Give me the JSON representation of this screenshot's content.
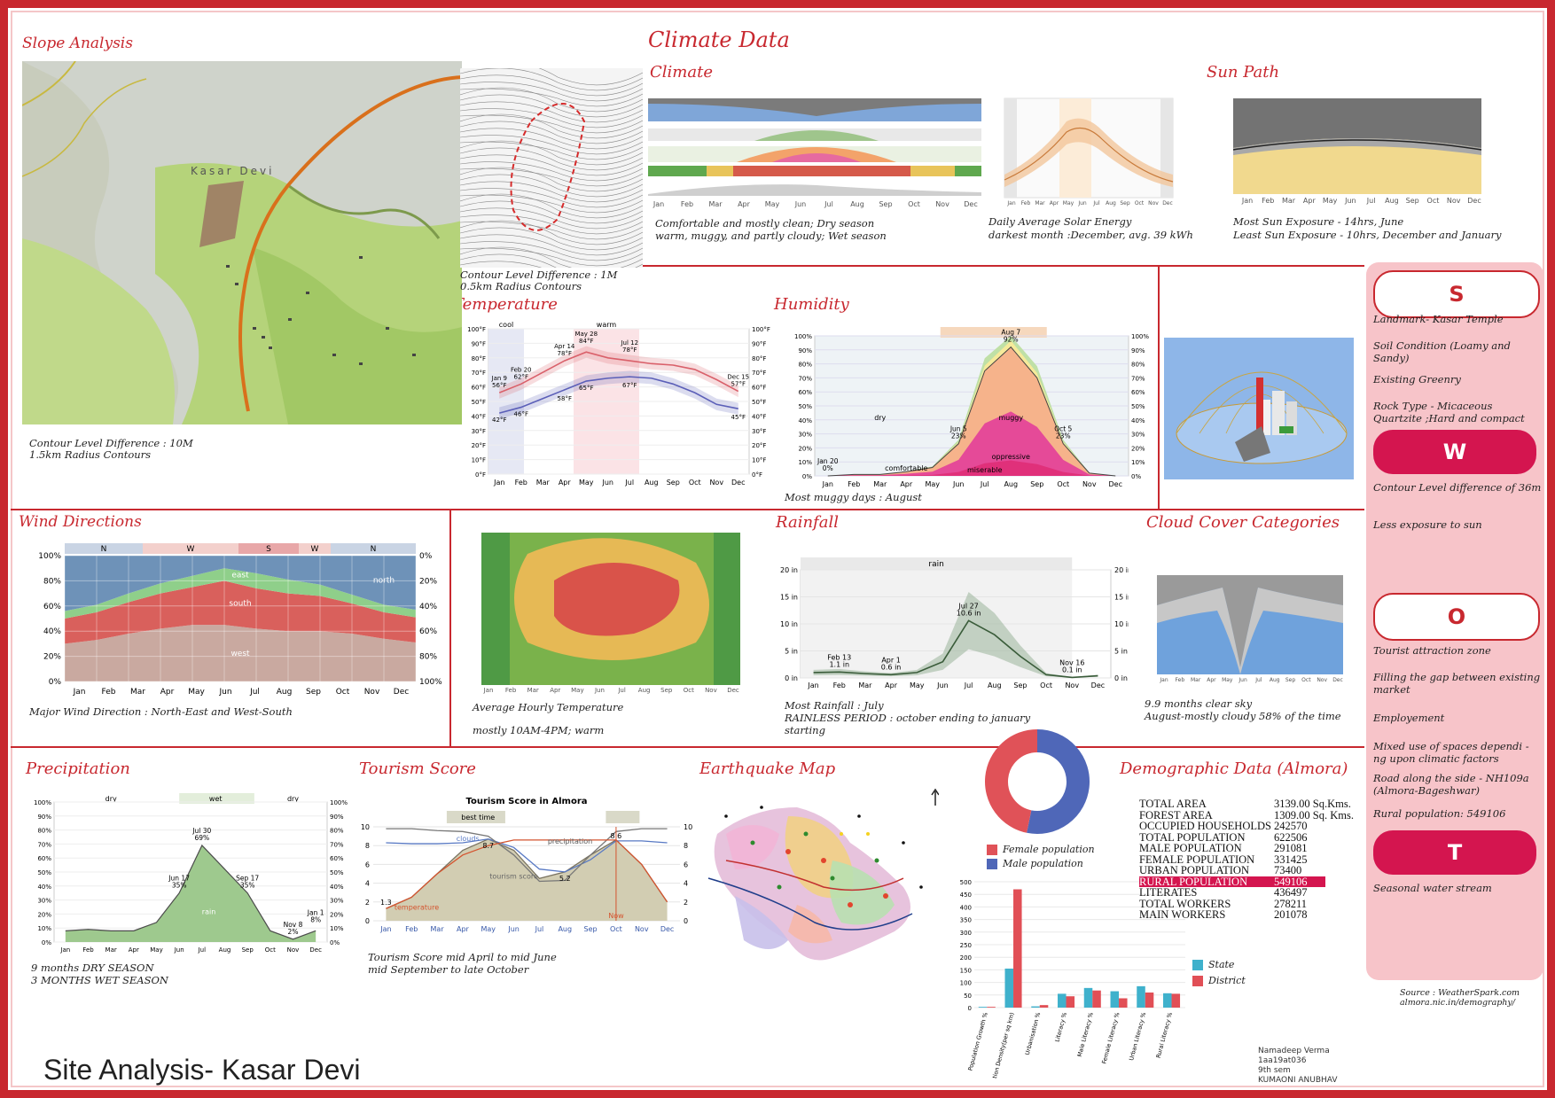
{
  "sheet_title": "Climate Data",
  "sections": {
    "slope": {
      "title": "Slope Analysis",
      "cap1": "Contour Level Difference : 10M",
      "cap2": "1.5km Radius Contours",
      "cap3": "Contour Level Difference : 1M",
      "cap4": "0.5km Radius Contours",
      "map_label": "Kasar Devi"
    },
    "climate": {
      "title": "Climate",
      "cap1": "Comfortable and mostly clean; Dry season",
      "cap2": "warm, muggy, and partly cloudy; Wet season"
    },
    "solar": {
      "cap1": "Daily Average Solar Energy",
      "cap2": "darkest month :December, avg. 39 kWh"
    },
    "sunpath": {
      "title": "Sun Path",
      "cap1": "Most Sun Exposure - 14hrs, June",
      "cap2": "Least Sun Exposure - 10hrs, December and January"
    },
    "temperature": {
      "title": "Temperature"
    },
    "humidity": {
      "title": "Humidity",
      "cap": "Most muggy days : August"
    },
    "wind": {
      "title": "Wind Directions",
      "cap": "Major Wind Direction : North-East and West-South"
    },
    "hourly": {
      "cap1": "Average Hourly Temperature",
      "cap2": "mostly 10AM-4PM; warm"
    },
    "rainfall": {
      "title": "Rainfall",
      "cap1": "Most Rainfall : July",
      "cap2": "RAINLESS PERIOD : october ending to january",
      "cap3": "starting"
    },
    "cloud": {
      "title": "Cloud Cover Categories",
      "cap1": "9.9 months clear sky",
      "cap2": "August-mostly cloudy 58% of the time"
    },
    "precip": {
      "title": "Precipitation",
      "cap1": "9 months DRY SEASON",
      "cap2": "3 MONTHS WET SEASON"
    },
    "tourism": {
      "title": "Tourism Score",
      "chart_title": "Tourism Score in Almora",
      "cap1": "Tourism Score mid April to mid June",
      "cap2": "mid September to late October"
    },
    "quake": {
      "title": "Earthquake Map"
    },
    "demographic": {
      "title": "Demographic Data (Almora)"
    }
  },
  "months": [
    "Jan",
    "Feb",
    "Mar",
    "Apr",
    "May",
    "Jun",
    "Jul",
    "Aug",
    "Sep",
    "Oct",
    "Nov",
    "Dec"
  ],
  "swot": [
    {
      "letter": "S",
      "style": "light",
      "items": [
        "Landmark- Kasar Temple",
        "Soil Condition (Loamy and Sandy)",
        "Existing Greenry",
        "Rock Type - Micaceous Quartzite ;Hard and compact"
      ]
    },
    {
      "letter": "W",
      "style": "dark",
      "items": [
        "Contour Level difference of 36m",
        "Less exposure to sun"
      ]
    },
    {
      "letter": "O",
      "style": "light",
      "items": [
        "Tourist attraction zone",
        "Filling the gap between existing market",
        "Employement",
        "Mixed use of spaces dependi -ng upon climatic factors",
        "Road along the side - NH109a (Almora-Bageshwar)",
        "Rural population: 549106"
      ]
    },
    {
      "letter": "T",
      "style": "dark",
      "items": [
        "Seasonal water stream"
      ]
    }
  ],
  "demographics": [
    {
      "label": "TOTAL AREA",
      "value": "3139.00 Sq.Kms."
    },
    {
      "label": "FOREST AREA",
      "value": "1309.00 Sq. Kms."
    },
    {
      "label": "OCCUPIED HOUSEHOLDS",
      "value": "242570"
    },
    {
      "label": "TOTAL POPULATION",
      "value": "622506"
    },
    {
      "label": "MALE POPULATION",
      "value": "291081"
    },
    {
      "label": "FEMALE POPULATION",
      "value": "331425"
    },
    {
      "label": "URBAN POPULATION",
      "value": "73400"
    },
    {
      "label": "RURAL POPULATION",
      "value": "549106",
      "highlight": true
    },
    {
      "label": "LITERATES",
      "value": "436497"
    },
    {
      "label": "TOTAL WORKERS",
      "value": "278211"
    },
    {
      "label": "MAIN WORKERS",
      "value": "201078"
    }
  ],
  "donut": {
    "legend_female": "Female population",
    "legend_male": "Male population",
    "colors": {
      "female": "#e05258",
      "male": "#4f67b8"
    }
  },
  "source": {
    "line1": "Source : WeatherSpark.com",
    "line2": "almora.nic.in/demography/"
  },
  "credits": [
    "Namadeep Verma",
    "1aa19at036",
    "9th sem",
    "KUMAONI ANUBHAV"
  ],
  "big_title": "Site Analysis- Kasar Devi",
  "chart_data": [
    {
      "id": "temperature",
      "type": "line",
      "x": [
        "Jan",
        "Feb",
        "Mar",
        "Apr",
        "May",
        "Jun",
        "Jul",
        "Aug",
        "Sep",
        "Oct",
        "Nov",
        "Dec"
      ],
      "series": [
        {
          "values": [
            56,
            62,
            70,
            78,
            84,
            80,
            78,
            76,
            75,
            72,
            65,
            57
          ]
        },
        {
          "values": [
            42,
            46,
            52,
            58,
            64,
            66,
            67,
            66,
            62,
            56,
            48,
            45
          ]
        }
      ],
      "labels": [
        "Jan 9",
        "56°F",
        "42°F",
        "Feb 20",
        "62°F",
        "46°F",
        "Apr 14",
        "78°F",
        "58°F",
        "May 28",
        "84°F",
        "65°F",
        "Jul 12",
        "78°F",
        "67°F",
        "Dec 15",
        "57°F",
        "45°F"
      ],
      "bands": [
        "cool",
        "warm"
      ],
      "yticks": [
        "100°F",
        "90°F",
        "80°F",
        "70°F",
        "60°F",
        "50°F",
        "40°F",
        "30°F",
        "20°F",
        "10°F",
        "0°F"
      ],
      "ylim": [
        0,
        100
      ]
    },
    {
      "id": "humidity",
      "type": "area",
      "x": [
        "Jan",
        "Feb",
        "Mar",
        "Apr",
        "May",
        "Jun",
        "Jul",
        "Aug",
        "Sep",
        "Oct",
        "Nov",
        "Dec"
      ],
      "values": [
        0,
        1,
        1,
        3,
        6,
        23,
        75,
        92,
        70,
        23,
        2,
        0
      ],
      "labels": [
        "Jan 20",
        "0%",
        "Jun 5",
        "23%",
        "Aug 7",
        "92%",
        "Oct 5",
        "23%"
      ],
      "zones": [
        "dry",
        "comfortable",
        "muggy",
        "oppressive",
        "miserable"
      ],
      "yticks": [
        "100%",
        "90%",
        "80%",
        "70%",
        "60%",
        "50%",
        "40%",
        "30%",
        "20%",
        "10%",
        "0%"
      ],
      "ylim": [
        0,
        100
      ]
    },
    {
      "id": "wind",
      "type": "area",
      "x": [
        "Jan",
        "Feb",
        "Mar",
        "Apr",
        "May",
        "Jun",
        "Jul",
        "Aug",
        "Sep",
        "Oct",
        "Nov",
        "Dec"
      ],
      "series": [
        {
          "name": "west",
          "values": [
            30,
            33,
            38,
            42,
            45,
            45,
            42,
            40,
            40,
            38,
            34,
            31
          ]
        },
        {
          "name": "south",
          "values": [
            20,
            22,
            25,
            28,
            30,
            35,
            32,
            30,
            28,
            24,
            21,
            20
          ]
        },
        {
          "name": "east",
          "values": [
            6,
            6,
            7,
            8,
            9,
            10,
            12,
            11,
            9,
            7,
            6,
            6
          ]
        },
        {
          "name": "north",
          "values": [
            44,
            39,
            30,
            22,
            16,
            10,
            14,
            19,
            23,
            31,
            39,
            43
          ]
        }
      ],
      "top_labels": [
        "N",
        "W",
        "S",
        "W",
        "N"
      ],
      "yticks_left": [
        "100%",
        "80%",
        "60%",
        "40%",
        "20%",
        "0%"
      ],
      "yticks_right": [
        "0%",
        "20%",
        "40%",
        "60%",
        "80%",
        "100%"
      ]
    },
    {
      "id": "rainfall",
      "type": "line",
      "x": [
        "Jan",
        "Feb",
        "Mar",
        "Apr",
        "May",
        "Jun",
        "Jul",
        "Aug",
        "Sep",
        "Oct",
        "Nov",
        "Dec"
      ],
      "values": [
        1.0,
        1.1,
        0.8,
        0.6,
        1.0,
        3.0,
        10.6,
        8.0,
        4.0,
        0.6,
        0.1,
        0.4
      ],
      "labels": [
        "Feb 13",
        "1.1 in",
        "Apr 1",
        "0.6 in",
        "Jul 27",
        "10.6 in",
        "Nov 16",
        "0.1 in"
      ],
      "band": "rain",
      "yticks": [
        "20 in",
        "15 in",
        "10 in",
        "5 in",
        "0 in"
      ],
      "ylim": [
        0,
        20
      ]
    },
    {
      "id": "precipitation",
      "type": "area",
      "x": [
        "Jan",
        "Feb",
        "Mar",
        "Apr",
        "May",
        "Jun",
        "Jul",
        "Aug",
        "Sep",
        "Oct",
        "Nov",
        "Dec"
      ],
      "values": [
        8,
        9,
        8,
        8,
        14,
        35,
        69,
        52,
        35,
        8,
        2,
        8
      ],
      "labels": [
        "Jun 17",
        "35%",
        "Jul 30",
        "69%",
        "Sep 17",
        "35%",
        "Nov 8",
        "2%",
        "Jan 1",
        "8%"
      ],
      "bands": [
        "dry",
        "wet",
        "dry"
      ],
      "series_label": "rain",
      "yticks": [
        "100%",
        "90%",
        "80%",
        "70%",
        "60%",
        "50%",
        "40%",
        "30%",
        "20%",
        "10%",
        "0%"
      ],
      "ylim": [
        0,
        100
      ]
    },
    {
      "id": "tourism",
      "type": "line",
      "x": [
        "Jan",
        "Feb",
        "Mar",
        "Apr",
        "May",
        "Jun",
        "Jul",
        "Aug",
        "Sep",
        "Oct",
        "Nov",
        "Dec"
      ],
      "series": [
        {
          "name": "tourism score",
          "values": [
            1.3,
            2.5,
            5,
            7.5,
            8.7,
            7.5,
            4.5,
            5.2,
            7,
            8.6,
            6,
            2
          ]
        },
        {
          "name": "clouds",
          "values": [
            8.3,
            8.2,
            8.2,
            8.3,
            8.7,
            7.8,
            5.5,
            5.2,
            6.5,
            8.5,
            8.5,
            8.3
          ]
        },
        {
          "name": "precipitation",
          "values": [
            9.8,
            9.8,
            9.6,
            9.5,
            9.0,
            7.0,
            4.2,
            4.3,
            7.0,
            9.5,
            9.8,
            9.8
          ]
        },
        {
          "name": "temperature",
          "values": [
            1.3,
            2.5,
            5,
            7,
            8,
            8.6,
            8.6,
            8.6,
            8.6,
            8.6,
            6,
            2
          ]
        }
      ],
      "labels": [
        "best time",
        "1.3",
        "8.7",
        "5.2",
        "8.6",
        "Now"
      ],
      "yticks": [
        "10",
        "8",
        "6",
        "4",
        "2",
        "0"
      ],
      "ylim": [
        0,
        10
      ]
    },
    {
      "id": "demographic_bars",
      "type": "bar",
      "categories": [
        "Population Growth %",
        "Population Density(per sq km)",
        "Urbanisation %",
        "Literacy %",
        "Male Literacy %",
        "Female Literacy %",
        "Urban Literacy %",
        "Rural Literacy %"
      ],
      "series": [
        {
          "name": "State",
          "values": [
            3,
            155,
            5,
            55,
            78,
            65,
            85,
            57
          ]
        },
        {
          "name": "District",
          "values": [
            3,
            470,
            10,
            45,
            68,
            37,
            60,
            55
          ]
        }
      ],
      "yticks": [
        "500",
        "450",
        "400",
        "350",
        "300",
        "250",
        "200",
        "150",
        "100",
        "50",
        "0"
      ],
      "ylim": [
        0,
        500
      ],
      "colors": {
        "State": "#3fb1cc",
        "District": "#e14f56"
      }
    },
    {
      "id": "sex_ratio",
      "type": "pie",
      "series": [
        {
          "name": "Female population",
          "value": 331425
        },
        {
          "name": "Male population",
          "value": 291081
        }
      ]
    }
  ]
}
